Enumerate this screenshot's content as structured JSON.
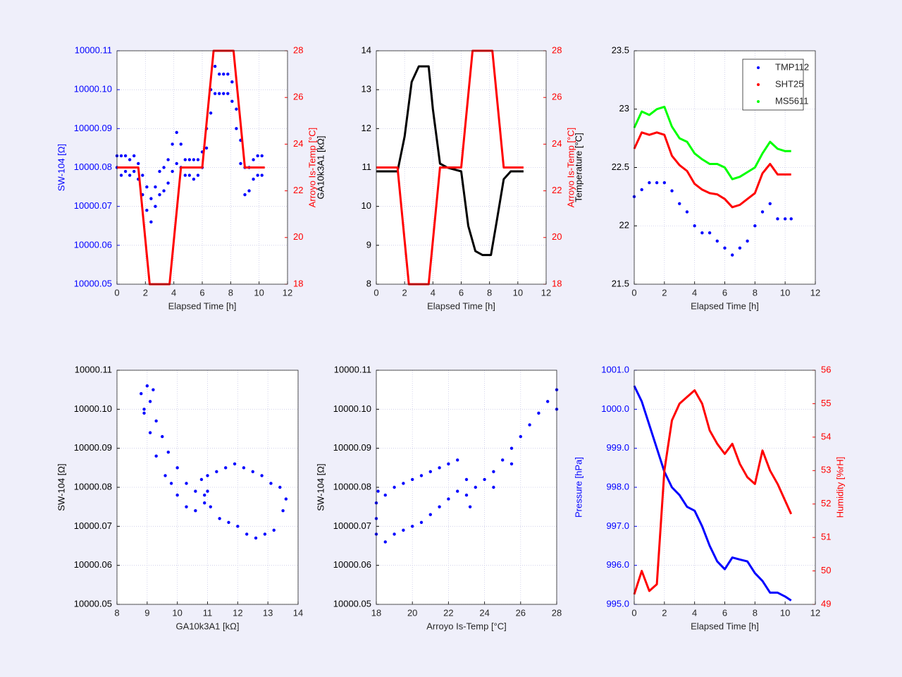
{
  "chart_data": [
    {
      "type": "line",
      "xlabel": "Elapsed Time [h]",
      "ylabel": "SW-104 [Ω]",
      "y2label": "Arroyo Is-Temp [°C]",
      "ycolor": "#0000ff",
      "y2color": "#ff0000",
      "xlim": [
        0,
        12
      ],
      "xticks": [
        0,
        2,
        4,
        6,
        8,
        10,
        12
      ],
      "ylim": [
        10000.05,
        10000.11
      ],
      "yticks": [
        10000.05,
        10000.06,
        10000.07,
        10000.08,
        10000.09,
        {
          "value": 10000.1,
          "label": "10000.10"
        },
        10000.11
      ],
      "y2lim": [
        18,
        28
      ],
      "y2ticks": [
        18,
        20,
        22,
        24,
        26,
        28
      ],
      "grid": true,
      "series": [
        {
          "type": "scatter",
          "color": "#0000ff",
          "x": [
            0,
            0,
            0.3,
            0.3,
            0.6,
            0.6,
            0.9,
            0.9,
            1.2,
            1.2,
            1.5,
            1.5,
            1.8,
            1.8,
            2.1,
            2.1,
            2.4,
            2.4,
            2.7,
            2.7,
            3.0,
            3.0,
            3.3,
            3.3,
            3.6,
            3.6,
            3.9,
            3.9,
            4.2,
            4.2,
            4.5,
            4.5,
            4.8,
            4.8,
            5.1,
            5.1,
            5.4,
            5.4,
            5.7,
            5.7,
            6.0,
            6.0,
            6.3,
            6.3,
            6.6,
            6.6,
            6.9,
            6.9,
            7.2,
            7.2,
            7.5,
            7.5,
            7.8,
            7.8,
            8.1,
            8.1,
            8.4,
            8.4,
            8.7,
            8.7,
            9.0,
            9.0,
            9.3,
            9.3,
            9.6,
            9.6,
            9.9,
            9.9,
            10.2,
            10.2
          ],
          "values": [
            10000.08,
            10000.083,
            10000.078,
            10000.083,
            10000.079,
            10000.083,
            10000.078,
            10000.082,
            10000.079,
            10000.083,
            10000.077,
            10000.081,
            10000.073,
            10000.078,
            10000.069,
            10000.075,
            10000.066,
            10000.072,
            10000.07,
            10000.075,
            10000.073,
            10000.079,
            10000.074,
            10000.08,
            10000.076,
            10000.082,
            10000.079,
            10000.086,
            10000.081,
            10000.089,
            10000.08,
            10000.086,
            10000.078,
            10000.082,
            10000.078,
            10000.082,
            10000.077,
            10000.082,
            10000.078,
            10000.082,
            10000.08,
            10000.084,
            10000.085,
            10000.09,
            10000.094,
            10000.1,
            10000.099,
            10000.106,
            10000.099,
            10000.104,
            10000.099,
            10000.104,
            10000.099,
            10000.104,
            10000.097,
            10000.102,
            10000.09,
            10000.095,
            10000.081,
            10000.087,
            10000.073,
            10000.08,
            10000.074,
            10000.08,
            10000.077,
            10000.082,
            10000.078,
            10000.083,
            10000.078,
            10000.083
          ]
        },
        {
          "type": "line",
          "axis": "y2",
          "color": "#ff0000",
          "x": [
            0,
            1.5,
            2.3,
            3.7,
            4.5,
            6,
            6.8,
            8.2,
            9,
            10.4
          ],
          "values": [
            23,
            23,
            18,
            18,
            23,
            23,
            28,
            28,
            23,
            23
          ]
        }
      ]
    },
    {
      "type": "line",
      "xlabel": "Elapsed Time [h]",
      "ylabel": "GA10k3A1 [kΩ]",
      "y2label": "Arroyo Is-Temp [°C]",
      "ycolor": "#000000",
      "y2color": "#ff0000",
      "xlim": [
        0,
        12
      ],
      "xticks": [
        0,
        2,
        4,
        6,
        8,
        10,
        12
      ],
      "ylim": [
        8,
        14
      ],
      "yticks": [
        8,
        9,
        10,
        11,
        12,
        13,
        14
      ],
      "y2lim": [
        18,
        28
      ],
      "y2ticks": [
        18,
        20,
        22,
        24,
        26,
        28
      ],
      "grid": true,
      "series": [
        {
          "type": "line",
          "color": "#000000",
          "x": [
            0,
            1.5,
            2.0,
            2.5,
            3.0,
            3.7,
            4.0,
            4.5,
            5,
            6,
            6.5,
            7,
            7.5,
            8.1,
            8.5,
            9,
            9.5,
            10.4
          ],
          "values": [
            10.9,
            10.9,
            11.8,
            13.2,
            13.6,
            13.6,
            12.5,
            11.1,
            11.0,
            10.9,
            9.5,
            8.85,
            8.75,
            8.75,
            9.6,
            10.7,
            10.9,
            10.9
          ]
        },
        {
          "type": "line",
          "axis": "y2",
          "color": "#ff0000",
          "x": [
            0,
            1.5,
            2.3,
            3.7,
            4.5,
            6,
            6.8,
            8.2,
            9,
            10.4
          ],
          "values": [
            23,
            23,
            18,
            18,
            23,
            23,
            28,
            28,
            23,
            23
          ]
        }
      ]
    },
    {
      "type": "line",
      "xlabel": "Elapsed Time [h]",
      "ylabel": "Temperature [°C]",
      "ycolor": "#000000",
      "xlim": [
        0,
        12
      ],
      "xticks": [
        0,
        2,
        4,
        6,
        8,
        10,
        12
      ],
      "ylim": [
        21.5,
        23.5
      ],
      "yticks": [
        21.5,
        22,
        22.5,
        23,
        23.5
      ],
      "grid": true,
      "legend": "upper right",
      "series": [
        {
          "name": "TMP112",
          "type": "scatter",
          "color": "#0000ff",
          "x": [
            0,
            0.5,
            1,
            1.5,
            2,
            2.5,
            3,
            3.5,
            4,
            4.5,
            5,
            5.5,
            6,
            6.5,
            7,
            7.5,
            8,
            8.5,
            9,
            9.5,
            10,
            10.4
          ],
          "values": [
            22.25,
            22.31,
            22.37,
            22.37,
            22.37,
            22.3,
            22.19,
            22.12,
            22.0,
            21.94,
            21.94,
            21.87,
            21.81,
            21.75,
            21.81,
            21.87,
            22.0,
            22.12,
            22.19,
            22.06,
            22.06,
            22.06
          ]
        },
        {
          "name": "SHT25",
          "type": "line",
          "color": "#ff0000",
          "x": [
            0,
            0.5,
            1,
            1.5,
            2,
            2.5,
            3,
            3.5,
            4,
            4.5,
            5,
            5.5,
            6,
            6.5,
            7,
            7.5,
            8,
            8.5,
            9,
            9.5,
            10,
            10.4
          ],
          "values": [
            22.66,
            22.8,
            22.78,
            22.8,
            22.78,
            22.6,
            22.52,
            22.47,
            22.36,
            22.31,
            22.28,
            22.27,
            22.23,
            22.16,
            22.18,
            22.23,
            22.28,
            22.45,
            22.53,
            22.44,
            22.44,
            22.44
          ]
        },
        {
          "name": "MS5611",
          "type": "line",
          "color": "#00ff00",
          "x": [
            0,
            0.5,
            1,
            1.5,
            2,
            2.5,
            3,
            3.5,
            4,
            4.5,
            5,
            5.5,
            6,
            6.5,
            7,
            7.5,
            8,
            8.5,
            9,
            9.5,
            10,
            10.4
          ],
          "values": [
            22.84,
            22.98,
            22.95,
            23.0,
            23.02,
            22.85,
            22.75,
            22.72,
            22.62,
            22.57,
            22.53,
            22.53,
            22.5,
            22.4,
            22.42,
            22.46,
            22.5,
            22.62,
            22.72,
            22.66,
            22.64,
            22.64
          ]
        }
      ]
    },
    {
      "type": "scatter",
      "xlabel": "GA10k3A1 [kΩ]",
      "ylabel": "SW-104 [Ω]",
      "ycolor": "#000000",
      "xlim": [
        8,
        14
      ],
      "xticks": [
        8,
        9,
        10,
        11,
        12,
        13,
        14
      ],
      "ylim": [
        10000.05,
        10000.11
      ],
      "yticks": [
        10000.05,
        10000.06,
        10000.07,
        10000.08,
        10000.09,
        {
          "value": 10000.1,
          "label": "10000.10"
        },
        10000.11
      ],
      "grid": true,
      "series": [
        {
          "type": "scatter",
          "color": "#0000ff",
          "x": [
            8.8,
            8.9,
            9.0,
            9.1,
            9.2,
            9.3,
            9.5,
            9.7,
            10.0,
            10.3,
            10.6,
            10.9,
            11.0,
            11.3,
            11.6,
            11.9,
            12.2,
            12.5,
            12.8,
            13.1,
            13.4,
            13.6,
            13.5,
            13.2,
            12.9,
            12.6,
            12.3,
            12.0,
            11.7,
            11.4,
            11.1,
            10.9,
            10.6,
            10.3,
            10.0,
            9.8,
            9.6,
            9.3,
            9.1,
            8.9,
            10.8,
            11.0
          ],
          "values": [
            10000.104,
            10000.1,
            10000.106,
            10000.102,
            10000.105,
            10000.097,
            10000.093,
            10000.089,
            10000.085,
            10000.081,
            10000.079,
            10000.078,
            10000.083,
            10000.084,
            10000.085,
            10000.086,
            10000.085,
            10000.084,
            10000.083,
            10000.081,
            10000.08,
            10000.077,
            10000.074,
            10000.069,
            10000.068,
            10000.067,
            10000.068,
            10000.07,
            10000.071,
            10000.072,
            10000.075,
            10000.076,
            10000.074,
            10000.075,
            10000.078,
            10000.081,
            10000.083,
            10000.088,
            10000.094,
            10000.099,
            10000.082,
            10000.079
          ]
        }
      ]
    },
    {
      "type": "scatter",
      "xlabel": "Arroyo Is-Temp [°C]",
      "ylabel": "SW-104 [Ω]",
      "ycolor": "#000000",
      "xlim": [
        18,
        28
      ],
      "xticks": [
        18,
        20,
        22,
        24,
        26,
        28
      ],
      "ylim": [
        10000.05,
        10000.11
      ],
      "yticks": [
        10000.05,
        10000.06,
        10000.07,
        10000.08,
        10000.09,
        {
          "value": 10000.1,
          "label": "10000.10"
        },
        10000.11
      ],
      "grid": true,
      "series": [
        {
          "type": "scatter",
          "color": "#0000ff",
          "x": [
            18.0,
            18.0,
            18.0,
            18.1,
            18.5,
            19.0,
            19.5,
            20.0,
            20.5,
            21.0,
            21.5,
            22.0,
            22.5,
            23.0,
            23.0,
            22.0,
            21.5,
            21.0,
            20.5,
            20.0,
            19.5,
            19.0,
            18.5,
            23.5,
            24.0,
            24.5,
            25.0,
            25.5,
            26.0,
            26.5,
            27.0,
            27.5,
            28.0,
            28.0,
            23.2,
            22.5,
            24.5,
            25.5
          ],
          "values": [
            10000.068,
            10000.072,
            10000.076,
            10000.079,
            10000.066,
            10000.068,
            10000.069,
            10000.07,
            10000.071,
            10000.073,
            10000.075,
            10000.077,
            10000.079,
            10000.078,
            10000.082,
            10000.086,
            10000.085,
            10000.084,
            10000.083,
            10000.082,
            10000.081,
            10000.08,
            10000.078,
            10000.08,
            10000.082,
            10000.084,
            10000.087,
            10000.09,
            10000.093,
            10000.096,
            10000.099,
            10000.102,
            10000.105,
            10000.1,
            10000.075,
            10000.087,
            10000.08,
            10000.086
          ]
        }
      ]
    },
    {
      "type": "line",
      "xlabel": "Elapsed Time [h]",
      "ylabel": "Pressure [hPa]",
      "y2label": "Humidity [%rH]",
      "ycolor": "#0000ff",
      "y2color": "#ff0000",
      "xlim": [
        0,
        12
      ],
      "xticks": [
        0,
        2,
        4,
        6,
        8,
        10,
        12
      ],
      "ylim": [
        995,
        1001
      ],
      "yticks": [
        {
          "value": 995,
          "label": "995.0"
        },
        {
          "value": 996,
          "label": "996.0"
        },
        {
          "value": 997,
          "label": "997.0"
        },
        {
          "value": 998,
          "label": "998.0"
        },
        {
          "value": 999,
          "label": "999.0"
        },
        {
          "value": 1000,
          "label": "1000.0"
        },
        {
          "value": 1001,
          "label": "1001.0"
        }
      ],
      "y2lim": [
        49,
        56
      ],
      "y2ticks": [
        49,
        50,
        51,
        52,
        53,
        54,
        55,
        56
      ],
      "grid": true,
      "series": [
        {
          "type": "line",
          "color": "#0000ff",
          "x": [
            0,
            0.5,
            1,
            1.5,
            2,
            2.5,
            3,
            3.5,
            4,
            4.5,
            5,
            5.5,
            6,
            6.5,
            7,
            7.5,
            8,
            8.5,
            9,
            9.5,
            10,
            10.4
          ],
          "values": [
            1000.6,
            1000.2,
            999.6,
            999.0,
            998.4,
            998.0,
            997.8,
            997.5,
            997.4,
            997.0,
            996.5,
            996.1,
            995.9,
            996.2,
            996.15,
            996.1,
            995.8,
            995.6,
            995.3,
            995.3,
            995.2,
            995.1
          ]
        },
        {
          "type": "line",
          "axis": "y2",
          "color": "#ff0000",
          "x": [
            0,
            0.5,
            1,
            1.5,
            2,
            2.5,
            3,
            3.5,
            4,
            4.5,
            5,
            5.5,
            6,
            6.5,
            7,
            7.5,
            8,
            8.5,
            9,
            9.5,
            10,
            10.4
          ],
          "values": [
            49.3,
            50.0,
            49.4,
            49.6,
            53.0,
            54.5,
            55.0,
            55.2,
            55.4,
            55.0,
            54.2,
            53.8,
            53.5,
            53.8,
            53.2,
            52.8,
            52.6,
            53.6,
            53.0,
            52.6,
            52.1,
            51.7
          ]
        }
      ]
    }
  ]
}
